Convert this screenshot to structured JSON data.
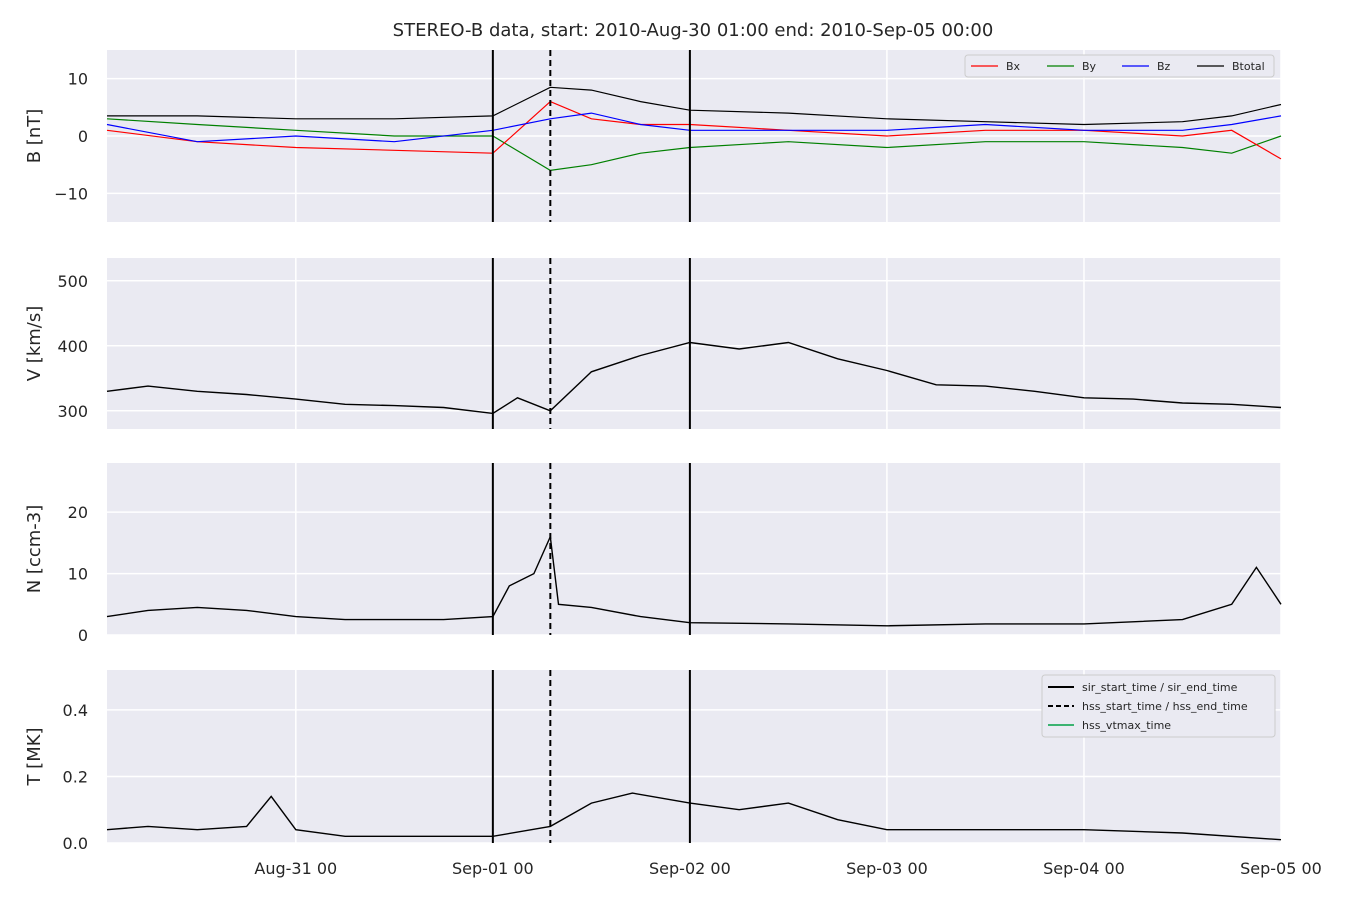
{
  "title": "STEREO-B data, start: 2010-Aug-30 01:00  end: 2010-Sep-05 00:00",
  "x_tick_labels": [
    "Aug-31 00",
    "Sep-01 00",
    "Sep-02 00",
    "Sep-03 00",
    "Sep-04 00",
    "Sep-05 00"
  ],
  "colors": {
    "bx": "#ff0000",
    "by": "#008000",
    "bz": "#0000ff",
    "btotal": "#000000",
    "vtmax": "#3cb371"
  },
  "legend_b": [
    "Bx",
    "By",
    "Bz",
    "Btotal"
  ],
  "legend_events": [
    "sir_start_time / sir_end_time",
    "hss_start_time / hss_end_time",
    "hss_vtmax_time"
  ],
  "chart_data": [
    {
      "type": "line",
      "ylabel": "B [nT]",
      "ylim": [
        -15,
        15
      ],
      "yticks": [
        -10,
        0,
        10
      ],
      "xrange": [
        "2010-08-30 01:00",
        "2010-09-05 00:00"
      ],
      "grid": true,
      "legend_position": "upper-right",
      "x": [
        "2010-08-30 01:00",
        "2010-08-30 12:00",
        "2010-08-31 00:00",
        "2010-08-31 12:00",
        "2010-09-01 00:00",
        "2010-09-01 07:00",
        "2010-09-01 12:00",
        "2010-09-01 18:00",
        "2010-09-02 00:00",
        "2010-09-02 12:00",
        "2010-09-03 00:00",
        "2010-09-03 12:00",
        "2010-09-04 00:00",
        "2010-09-04 12:00",
        "2010-09-04 18:00",
        "2010-09-05 00:00"
      ],
      "series": [
        {
          "name": "Bx",
          "values": [
            1,
            -1,
            -2,
            -2.5,
            -3,
            6,
            3,
            2,
            2,
            1,
            0,
            1,
            1,
            0,
            1,
            -4
          ]
        },
        {
          "name": "By",
          "values": [
            3,
            2,
            1,
            0,
            0,
            -6,
            -5,
            -3,
            -2,
            -1,
            -2,
            -1,
            -1,
            -2,
            -3,
            0
          ]
        },
        {
          "name": "Bz",
          "values": [
            2,
            -1,
            0,
            -1,
            1,
            3,
            4,
            2,
            1,
            1,
            1,
            2,
            1,
            1,
            2,
            3.5
          ]
        },
        {
          "name": "Btotal",
          "values": [
            3.5,
            3.5,
            3,
            3,
            3.5,
            8.5,
            8,
            6,
            4.5,
            4,
            3,
            2.5,
            2,
            2.5,
            3.5,
            5.5
          ]
        }
      ]
    },
    {
      "type": "line",
      "ylabel": "V [km/s]",
      "ylim": [
        272,
        535
      ],
      "yticks": [
        300,
        400,
        500
      ],
      "xrange": [
        "2010-08-30 01:00",
        "2010-09-05 00:00"
      ],
      "grid": true,
      "x": [
        "2010-08-30 01:00",
        "2010-08-30 06:00",
        "2010-08-30 12:00",
        "2010-08-30 18:00",
        "2010-08-31 00:00",
        "2010-08-31 06:00",
        "2010-08-31 12:00",
        "2010-08-31 18:00",
        "2010-09-01 00:00",
        "2010-09-01 03:00",
        "2010-09-01 07:00",
        "2010-09-01 12:00",
        "2010-09-01 18:00",
        "2010-09-02 00:00",
        "2010-09-02 06:00",
        "2010-09-02 12:00",
        "2010-09-02 18:00",
        "2010-09-03 00:00",
        "2010-09-03 06:00",
        "2010-09-03 12:00",
        "2010-09-03 18:00",
        "2010-09-04 00:00",
        "2010-09-04 06:00",
        "2010-09-04 12:00",
        "2010-09-04 18:00",
        "2010-09-05 00:00"
      ],
      "values": [
        330,
        338,
        330,
        325,
        318,
        310,
        308,
        305,
        296,
        320,
        300,
        360,
        385,
        405,
        395,
        405,
        380,
        362,
        340,
        338,
        330,
        320,
        318,
        312,
        310,
        305
      ]
    },
    {
      "type": "line",
      "ylabel": "N [ccm-3]",
      "ylim": [
        0,
        28
      ],
      "yticks": [
        0,
        10,
        20
      ],
      "xrange": [
        "2010-08-30 01:00",
        "2010-09-05 00:00"
      ],
      "grid": true,
      "x": [
        "2010-08-30 01:00",
        "2010-08-30 06:00",
        "2010-08-30 12:00",
        "2010-08-30 18:00",
        "2010-08-31 00:00",
        "2010-08-31 06:00",
        "2010-08-31 12:00",
        "2010-08-31 18:00",
        "2010-09-01 00:00",
        "2010-09-01 02:00",
        "2010-09-01 05:00",
        "2010-09-01 07:00",
        "2010-09-01 08:00",
        "2010-09-01 12:00",
        "2010-09-01 18:00",
        "2010-09-02 00:00",
        "2010-09-02 12:00",
        "2010-09-03 00:00",
        "2010-09-03 12:00",
        "2010-09-04 00:00",
        "2010-09-04 12:00",
        "2010-09-04 18:00",
        "2010-09-04 21:00",
        "2010-09-05 00:00"
      ],
      "values": [
        3,
        4,
        4.5,
        4,
        3,
        2.5,
        2.5,
        2.5,
        3,
        8,
        10,
        16,
        5,
        4.5,
        3,
        2,
        1.8,
        1.5,
        1.8,
        1.8,
        2.5,
        5,
        11,
        5
      ]
    },
    {
      "type": "line",
      "ylabel": "T [MK]",
      "ylim": [
        0,
        0.52
      ],
      "yticks": [
        0.0,
        0.2,
        0.4
      ],
      "xrange": [
        "2010-08-30 01:00",
        "2010-09-05 00:00"
      ],
      "grid": true,
      "legend_position": "upper-right",
      "x": [
        "2010-08-30 01:00",
        "2010-08-30 06:00",
        "2010-08-30 12:00",
        "2010-08-30 18:00",
        "2010-08-30 21:00",
        "2010-08-31 00:00",
        "2010-08-31 06:00",
        "2010-08-31 12:00",
        "2010-08-31 18:00",
        "2010-09-01 00:00",
        "2010-09-01 07:00",
        "2010-09-01 12:00",
        "2010-09-01 17:00",
        "2010-09-02 00:00",
        "2010-09-02 06:00",
        "2010-09-02 12:00",
        "2010-09-02 18:00",
        "2010-09-03 00:00",
        "2010-09-03 12:00",
        "2010-09-04 00:00",
        "2010-09-04 12:00",
        "2010-09-05 00:00"
      ],
      "values": [
        0.04,
        0.05,
        0.04,
        0.05,
        0.14,
        0.04,
        0.02,
        0.02,
        0.02,
        0.02,
        0.05,
        0.12,
        0.15,
        0.12,
        0.1,
        0.12,
        0.07,
        0.04,
        0.04,
        0.04,
        0.03,
        0.01
      ]
    }
  ],
  "event_lines": {
    "sir": [
      "2010-09-01 00:00",
      "2010-09-02 00:00"
    ],
    "hss": [
      "2010-09-01 07:00"
    ]
  }
}
